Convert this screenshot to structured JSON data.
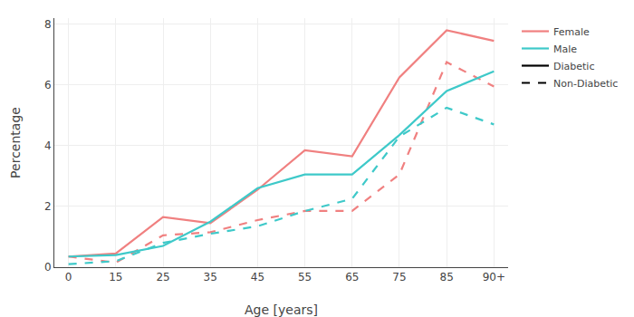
{
  "chart_data": {
    "type": "line",
    "xlabel": "Age [years]",
    "ylabel": "Percentage",
    "categories": [
      "0",
      "15",
      "25",
      "35",
      "45",
      "55",
      "65",
      "75",
      "85",
      "90+"
    ],
    "series": [
      {
        "color": "#f08080",
        "line_style": "solid",
        "values": [
          0.35,
          0.45,
          1.65,
          1.45,
          2.55,
          3.85,
          3.65,
          6.25,
          7.8,
          7.45
        ]
      },
      {
        "color": "#f08080",
        "line_style": "dashed",
        "values": [
          0.35,
          0.15,
          1.05,
          1.15,
          1.55,
          1.85,
          1.85,
          3.05,
          6.75,
          5.95
        ]
      },
      {
        "color": "#3ec9c9",
        "line_style": "solid",
        "values": [
          0.35,
          0.4,
          0.7,
          1.5,
          2.6,
          3.05,
          3.05,
          4.35,
          5.8,
          6.45
        ]
      },
      {
        "color": "#3ec9c9",
        "line_style": "dashed",
        "values": [
          0.1,
          0.2,
          0.8,
          1.1,
          1.35,
          1.85,
          2.25,
          4.3,
          5.25,
          4.7
        ]
      }
    ],
    "legend": "right",
    "legend_items": [
      {
        "name": "Female",
        "color": "#f08080",
        "line_style": "solid"
      },
      {
        "name": "Male",
        "color": "#3ec9c9",
        "line_style": "solid"
      },
      {
        "name": "Diabetic",
        "color": "black",
        "line_style": "solid"
      },
      {
        "name": "Non-Diabetic",
        "color": "black",
        "line_style": "dashed"
      }
    ],
    "ylim": [
      0,
      8.2
    ],
    "yticks": [
      0,
      2,
      4,
      6,
      8
    ],
    "grid": true
  }
}
